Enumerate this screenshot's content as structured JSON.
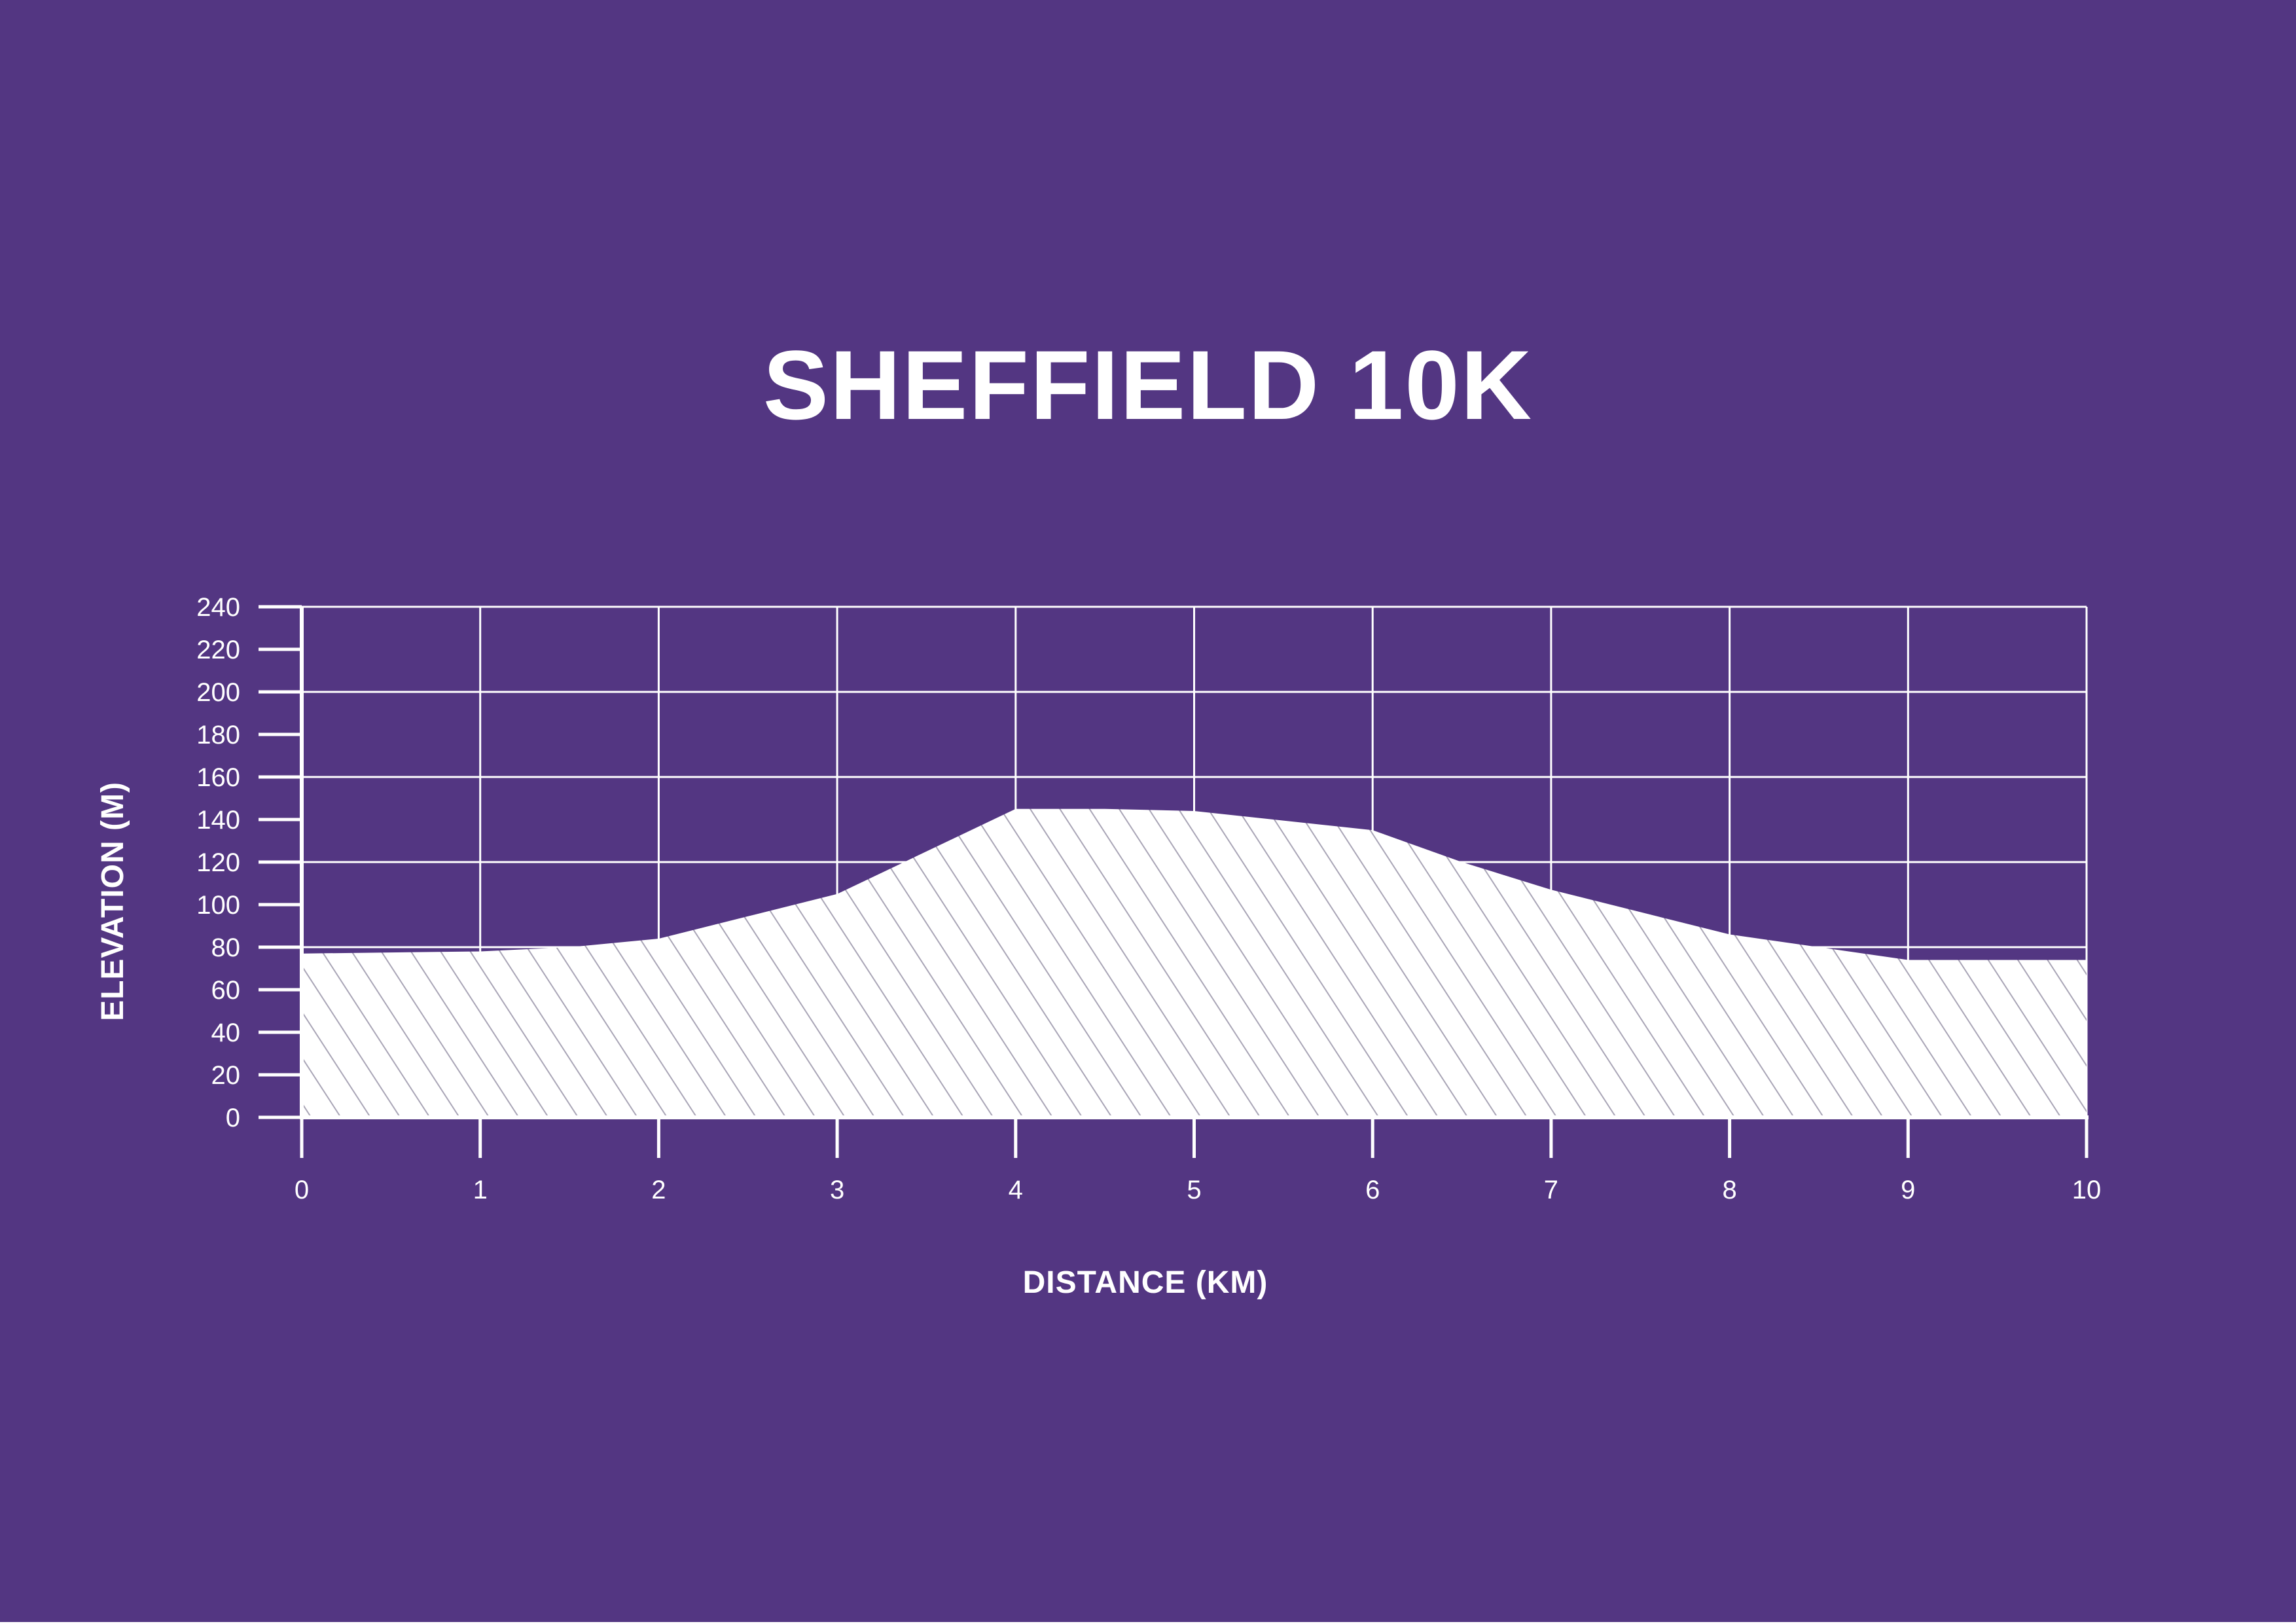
{
  "colors": {
    "background": "#533682",
    "foreground": "#ffffff",
    "hatch": "#a9a5b6"
  },
  "chart_data": {
    "type": "area",
    "title": "SHEFFIELD 10K",
    "xlabel": "DISTANCE (KM)",
    "ylabel": "ELEVATION (M)",
    "xlim": [
      0,
      10
    ],
    "ylim": [
      0,
      240
    ],
    "x_ticks": [
      0,
      1,
      2,
      3,
      4,
      5,
      6,
      7,
      8,
      9,
      10
    ],
    "y_ticks": [
      0,
      20,
      40,
      60,
      80,
      100,
      120,
      140,
      160,
      180,
      200,
      220,
      240
    ],
    "grid": true,
    "fill": "hatched",
    "series": [
      {
        "x": [
          0,
          1,
          1.5,
          2,
          3,
          4,
          4.5,
          5,
          6,
          6.5,
          7,
          8,
          8.5,
          9,
          10
        ],
        "y": [
          77,
          78,
          80,
          84,
          105,
          145,
          145,
          144,
          135,
          120,
          107,
          86,
          80,
          74,
          74
        ]
      }
    ]
  }
}
